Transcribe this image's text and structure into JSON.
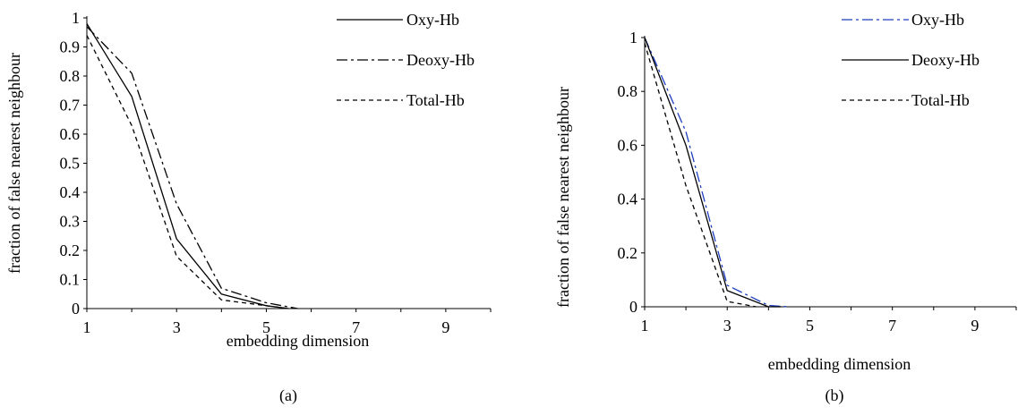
{
  "chart_data": [
    {
      "type": "line",
      "caption": "(a)",
      "xlabel": "embedding dimension",
      "ylabel": "fraction of false nearest neighbour",
      "xlim": [
        1,
        10
      ],
      "ylim": [
        0,
        1
      ],
      "xticks": [
        "1",
        "3",
        "5",
        "7",
        "9"
      ],
      "yticks": [
        "0",
        "0.1",
        "0.2",
        "0.3",
        "0.4",
        "0.5",
        "0.6",
        "0.7",
        "0.8",
        "0.9",
        "1"
      ],
      "legend_position": "top-right",
      "series": [
        {
          "name": "Oxy-Hb",
          "style": "solid",
          "color": "#000000",
          "x": [
            1,
            2,
            3,
            4,
            5,
            5.5
          ],
          "y": [
            0.98,
            0.73,
            0.24,
            0.05,
            0.01,
            0.0
          ]
        },
        {
          "name": "Deoxy-Hb",
          "style": "dashdot",
          "color": "#000000",
          "x": [
            1,
            2,
            3,
            4,
            5,
            5.7
          ],
          "y": [
            0.97,
            0.81,
            0.36,
            0.07,
            0.02,
            0.0
          ]
        },
        {
          "name": "Total-Hb",
          "style": "dashed",
          "color": "#000000",
          "x": [
            1,
            2,
            3,
            4,
            5,
            5.5
          ],
          "y": [
            0.94,
            0.63,
            0.18,
            0.03,
            0.01,
            0.0
          ]
        }
      ]
    },
    {
      "type": "line",
      "caption": "(b)",
      "xlabel": "embedding dimension",
      "ylabel": "fraction of false nearest neighbour",
      "xlim": [
        1,
        10
      ],
      "ylim": [
        0,
        1
      ],
      "xticks": [
        "1",
        "3",
        "5",
        "7",
        "9"
      ],
      "yticks": [
        "0",
        "0.2",
        "0.4",
        "0.6",
        "0.8",
        "1"
      ],
      "legend_position": "top-right",
      "series": [
        {
          "name": "Oxy-Hb",
          "style": "dashdot",
          "color": "#1f3fbf",
          "x": [
            1,
            2,
            3,
            4,
            4.5
          ],
          "y": [
            1.0,
            0.65,
            0.08,
            0.005,
            0.0
          ]
        },
        {
          "name": "Deoxy-Hb",
          "style": "solid",
          "color": "#000000",
          "x": [
            1,
            2,
            3,
            4,
            4.3
          ],
          "y": [
            1.0,
            0.6,
            0.06,
            0.0,
            0.0
          ]
        },
        {
          "name": "Total-Hb",
          "style": "dashed",
          "color": "#000000",
          "x": [
            1,
            2,
            3,
            3.7
          ],
          "y": [
            0.98,
            0.45,
            0.02,
            0.0
          ]
        }
      ]
    }
  ]
}
